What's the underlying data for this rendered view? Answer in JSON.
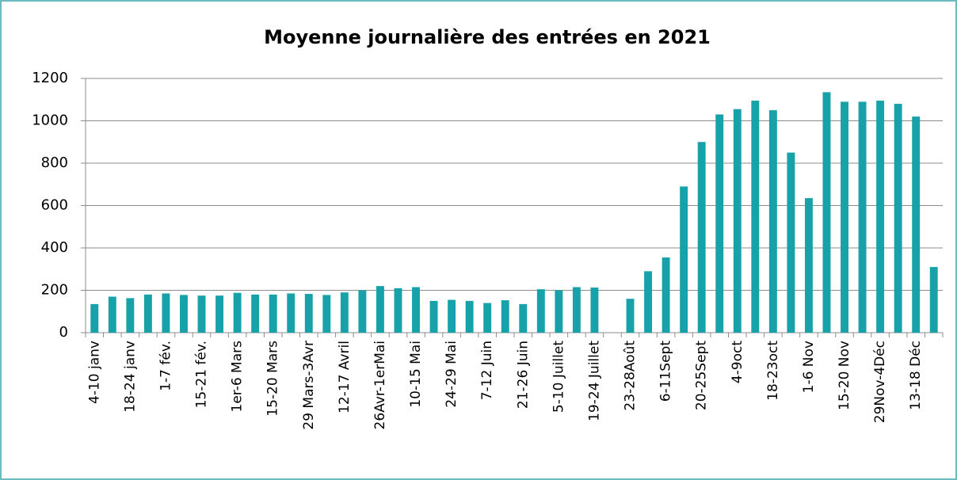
{
  "chart_data": {
    "type": "bar",
    "title": "Moyenne journalière des entrées en 2021",
    "categories": [
      "4-10 janv",
      null,
      "18-24 janv",
      null,
      "1-7 fév.",
      null,
      "15-21 fév.",
      null,
      "1er-6 Mars",
      null,
      "15-20 Mars",
      null,
      "29 Mars-3Avr",
      null,
      "12-17 Avril",
      null,
      "26Avr-1erMai",
      null,
      "10-15 Mai",
      null,
      "24-29 Mai",
      null,
      "7-12 Juin",
      null,
      "21-26 Juin",
      null,
      "5-10 Juillet",
      null,
      "19-24 Juillet",
      null,
      "23-28Août",
      null,
      "6-11Sept",
      null,
      "20-25Sept",
      null,
      "4-9oct",
      null,
      "18-23oct",
      null,
      "1-6 Nov",
      null,
      "15-20 Nov",
      null,
      "29Nov-4Déc",
      null,
      "13-18 Déc",
      null
    ],
    "values": [
      135,
      170,
      163,
      180,
      185,
      178,
      175,
      175,
      188,
      180,
      180,
      185,
      183,
      178,
      190,
      200,
      220,
      210,
      215,
      150,
      155,
      150,
      140,
      153,
      135,
      205,
      200,
      215,
      213,
      null,
      160,
      290,
      355,
      690,
      900,
      1030,
      1055,
      1095,
      1050,
      850,
      635,
      1135,
      1090,
      1090,
      1095,
      1080,
      1020,
      310
    ],
    "color": "#17a2aa",
    "ylim": [
      0,
      1200
    ],
    "yticks": [
      0,
      200,
      400,
      600,
      800,
      1000,
      1200
    ],
    "grid": true
  }
}
